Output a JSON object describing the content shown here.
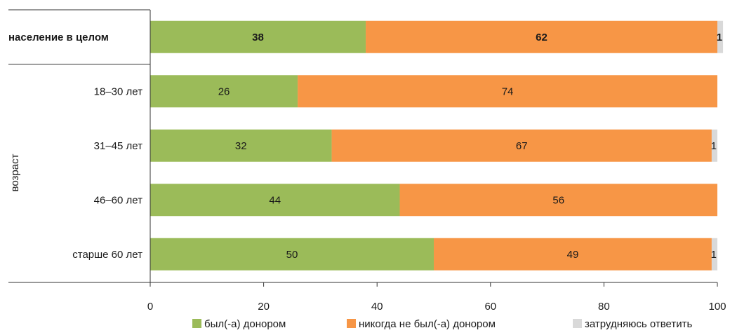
{
  "chart_data": {
    "type": "bar",
    "orientation": "horizontal",
    "stacked": true,
    "title": "",
    "xlabel": "",
    "ylabel": "",
    "xlim": [
      0,
      100
    ],
    "x_ticks": [
      "0",
      "20",
      "40",
      "60",
      "80",
      "100"
    ],
    "grid": false,
    "legend_position": "bottom",
    "categories": [
      "население в целом",
      "18–30 лет",
      "31–45 лет",
      "46–60 лет",
      "старше 60 лет"
    ],
    "category_groups": [
      {
        "label": "возраст",
        "categories": [
          "18–30 лет",
          "31–45 лет",
          "46–60 лет",
          "старше 60 лет"
        ]
      }
    ],
    "series": [
      {
        "name": "был(-а) донором",
        "color": "#9bbb59",
        "values": [
          38,
          26,
          32,
          44,
          50
        ]
      },
      {
        "name": "никогда не был(-а) донором",
        "color": "#f79646",
        "values": [
          62,
          74,
          67,
          56,
          49
        ]
      },
      {
        "name": "затрудняюсь ответить",
        "color": "#d9d9d9",
        "values": [
          1,
          0,
          1,
          0,
          1
        ]
      }
    ],
    "data_labels": [
      [
        "38",
        "26",
        "32",
        "44",
        "50"
      ],
      [
        "62",
        "74",
        "67",
        "56",
        "49"
      ],
      [
        "1",
        "",
        "1",
        "",
        "1"
      ]
    ]
  }
}
